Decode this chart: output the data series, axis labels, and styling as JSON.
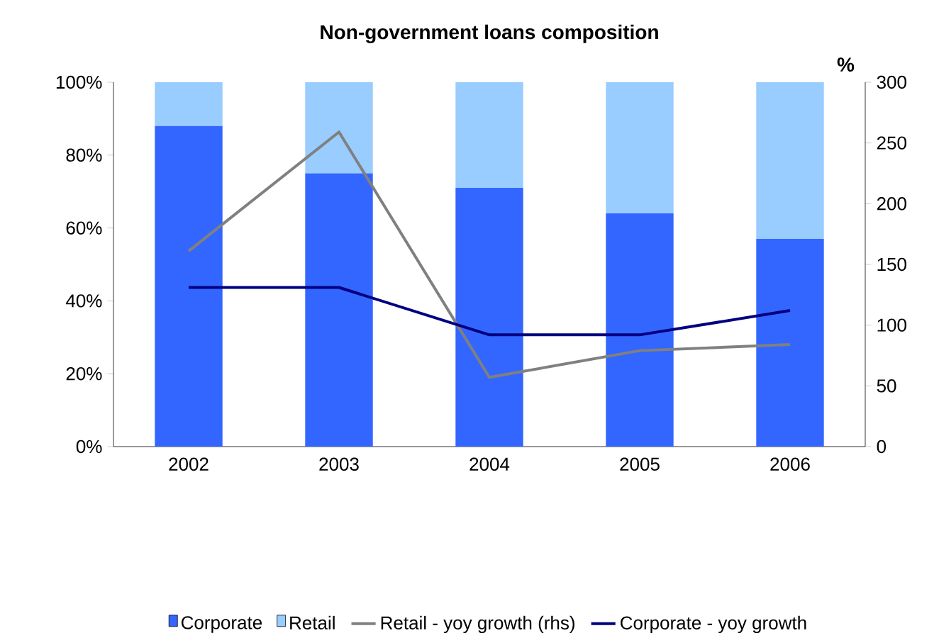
{
  "chart_data": {
    "type": "bar",
    "title": "Non-government loans composition",
    "y2label": "%",
    "categories": [
      "2002",
      "2003",
      "2004",
      "2005",
      "2006"
    ],
    "stacked": true,
    "series": [
      {
        "name": "Corporate",
        "color": "#3366ff",
        "values": [
          88,
          75,
          71,
          64,
          57
        ]
      },
      {
        "name": "Retail",
        "color": "#99ccff",
        "values": [
          12,
          25,
          29,
          36,
          43
        ]
      },
      {
        "name": "Retail - yoy growth (rhs)",
        "type": "line",
        "axis": "y2",
        "color": "#808080",
        "values": [
          161,
          259,
          57,
          79,
          84
        ]
      },
      {
        "name": "Corporate - yoy growth",
        "type": "line",
        "axis": "y2",
        "color": "#000080",
        "values": [
          131,
          131,
          92,
          92,
          112
        ]
      }
    ],
    "ylim": [
      0,
      100
    ],
    "yticks": [
      {
        "value": 0,
        "label": "0%"
      },
      {
        "value": 20,
        "label": "20%"
      },
      {
        "value": 40,
        "label": "40%"
      },
      {
        "value": 60,
        "label": "60%"
      },
      {
        "value": 80,
        "label": "80%"
      },
      {
        "value": 100,
        "label": "100%"
      }
    ],
    "y2lim": [
      0,
      300
    ],
    "y2ticks": [
      0,
      50,
      100,
      150,
      200,
      250,
      300
    ],
    "legend": "bottom",
    "marker": "none"
  }
}
